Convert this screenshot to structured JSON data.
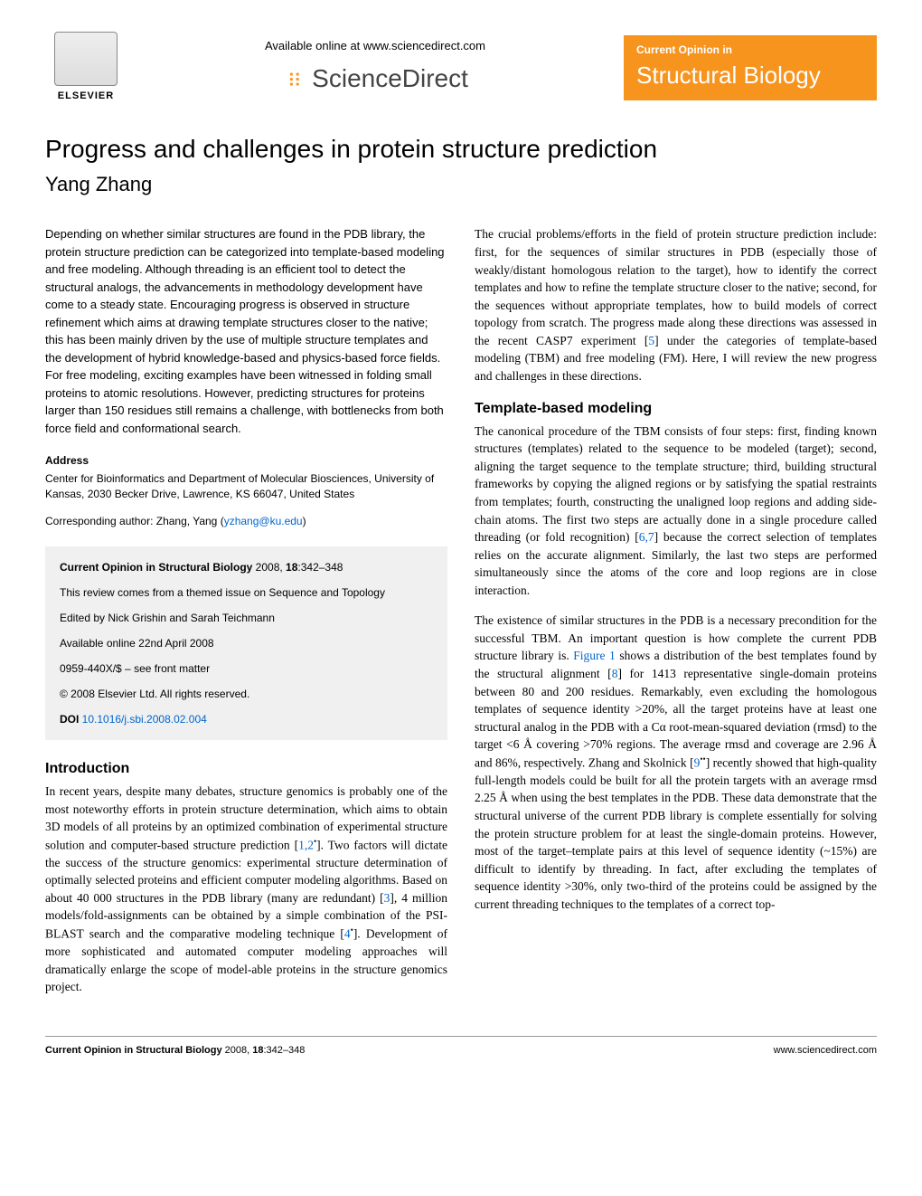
{
  "header": {
    "elsevier": "ELSEVIER",
    "available_online": "Available online at www.sciencedirect.com",
    "sciencedirect": "ScienceDirect",
    "badge_top": "Current Opinion in",
    "badge_main": "Structural Biology"
  },
  "title": "Progress and challenges in protein structure prediction",
  "author": "Yang Zhang",
  "abstract": "Depending on whether similar structures are found in the PDB library, the protein structure prediction can be categorized into template-based modeling and free modeling. Although threading is an efficient tool to detect the structural analogs, the advancements in methodology development have come to a steady state. Encouraging progress is observed in structure refinement which aims at drawing template structures closer to the native; this has been mainly driven by the use of multiple structure templates and the development of hybrid knowledge-based and physics-based force fields. For free modeling, exciting examples have been witnessed in folding small proteins to atomic resolutions. However, predicting structures for proteins larger than 150 residues still remains a challenge, with bottlenecks from both force field and conformational search.",
  "address": {
    "heading": "Address",
    "body": "Center for Bioinformatics and Department of Molecular Biosciences, University of Kansas, 2030 Becker Drive, Lawrence, KS 66047, United States",
    "corresponding_prefix": "Corresponding author: Zhang, Yang (",
    "email": "yzhang@ku.edu",
    "corresponding_suffix": ")"
  },
  "infobox": {
    "citation_prefix": "Current Opinion in Structural Biology",
    "citation_year": " 2008, ",
    "citation_vol": "18",
    "citation_pages": ":342–348",
    "themed": "This review comes from a themed issue on Sequence and Topology",
    "editors": "Edited by Nick Grishin and Sarah Teichmann",
    "online": "Available online 22nd April 2008",
    "issn": "0959-440X/$ – see front matter",
    "copyright": "© 2008 Elsevier Ltd. All rights reserved.",
    "doi_label": "DOI ",
    "doi": "10.1016/j.sbi.2008.02.004"
  },
  "sections": {
    "intro_heading": "Introduction",
    "intro_p1_a": "In recent years, despite many debates, structure genomics is probably one of the most noteworthy efforts in protein structure determination, which aims to obtain 3D models of all proteins by an optimized combination of experimental structure solution and computer-based structure prediction [",
    "intro_ref1": "1,2",
    "intro_p1_b": "]. Two factors will dictate the success of the structure genomics: experimental structure determination of optimally selected proteins and efficient computer modeling algorithms. Based on about 40 000 structures in the PDB library (many are redundant) [",
    "intro_ref3": "3",
    "intro_p1_c": "], 4 million models/fold-assignments can be obtained by a simple combination of the PSI-BLAST search and the comparative modeling technique [",
    "intro_ref4": "4",
    "intro_p1_d": "]. Development of more sophisticated and automated computer modeling approaches will dramatically enlarge the scope of model-able proteins in the structure genomics project.",
    "col2_p1_a": "The crucial problems/efforts in the field of protein structure prediction include: first, for the sequences of similar structures in PDB (especially those of weakly/distant homologous relation to the target), how to identify the correct templates and how to refine the template structure closer to the native; second, for the sequences without appropriate templates, how to build models of correct topology from scratch. The progress made along these directions was assessed in the recent CASP7 experiment [",
    "col2_ref5": "5",
    "col2_p1_b": "] under the categories of template-based modeling (TBM) and free modeling (FM). Here, I will review the new progress and challenges in these directions.",
    "tbm_heading": "Template-based modeling",
    "tbm_p1_a": "The canonical procedure of the TBM consists of four steps: first, finding known structures (templates) related to the sequence to be modeled (target); second, aligning the target sequence to the template structure; third, building structural frameworks by copying the aligned regions or by satisfying the spatial restraints from templates; fourth, constructing the unaligned loop regions and adding side-chain atoms. The first two steps are actually done in a single procedure called threading (or fold recognition) [",
    "tbm_ref67": "6,7",
    "tbm_p1_b": "] because the correct selection of templates relies on the accurate alignment. Similarly, the last two steps are performed simultaneously since the atoms of the core and loop regions are in close interaction.",
    "tbm_p2_a": "The existence of similar structures in the PDB is a necessary precondition for the successful TBM. An important question is how complete the current PDB structure library is. ",
    "tbm_fig1": "Figure 1",
    "tbm_p2_b": " shows a distribution of the best templates found by the structural alignment [",
    "tbm_ref8": "8",
    "tbm_p2_c": "] for 1413 representative single-domain proteins between 80 and 200 residues. Remarkably, even excluding the homologous templates of sequence identity >20%, all the target proteins have at least one structural analog in the PDB with a Cα root-mean-squared deviation (rmsd) to the target <6 Å covering >70% regions. The average rmsd and coverage are 2.96 Å and 86%, respectively. Zhang and Skolnick [",
    "tbm_ref9": "9",
    "tbm_p2_d": "] recently showed that high-quality full-length models could be built for all the protein targets with an average rmsd 2.25 Å when using the best templates in the PDB. These data demonstrate that the structural universe of the current PDB library is complete essentially for solving the protein structure problem for at least the single-domain proteins. However, most of the target–template pairs at this level of sequence identity (~15%) are difficult to identify by threading. In fact, after excluding the templates of sequence identity >30%, only two-third of the proteins could be assigned by the current threading techniques to the templates of a correct top-"
  },
  "footer": {
    "left_prefix": "Current Opinion in Structural Biology",
    "left_rest": " 2008, ",
    "left_vol": "18",
    "left_pages": ":342–348",
    "right": "www.sciencedirect.com"
  }
}
